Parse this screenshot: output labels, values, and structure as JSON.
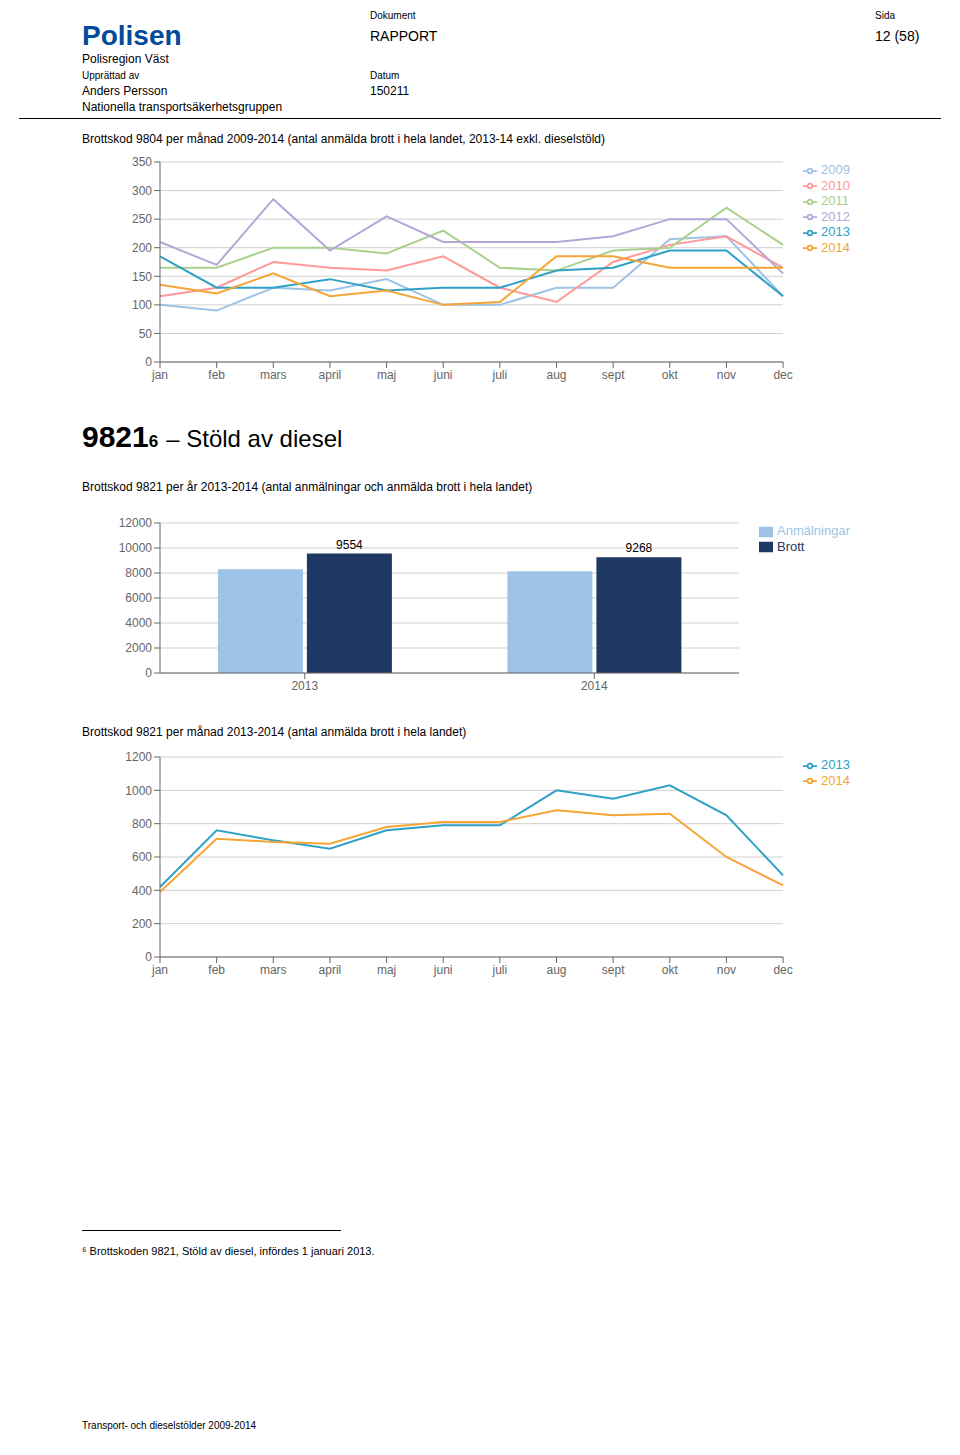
{
  "chart_data": [
    {
      "type": "line",
      "title": "Brottskod 9804 per månad 2009-2014 (antal anmälda brott i hela landet, 2013-14 exkl. dieselstöld)",
      "annotations": [
        "Polisen",
        "Polisregion Väst",
        "Dokument",
        "RAPPORT",
        "Sida",
        "12 (58)",
        "Upprättad av",
        "Anders Persson",
        "Datum",
        "150211",
        "Nationella transportsäkerhetsgruppen"
      ],
      "categories": [
        "jan",
        "feb",
        "mars",
        "april",
        "maj",
        "juni",
        "juli",
        "aug",
        "sept",
        "okt",
        "nov",
        "dec"
      ],
      "series": [
        {
          "name": "2009",
          "color": "#9DC3E6",
          "values": [
            100,
            90,
            130,
            125,
            145,
            100,
            100,
            130,
            130,
            215,
            220,
            115
          ]
        },
        {
          "name": "2010",
          "color": "#FF9999",
          "values": [
            115,
            130,
            175,
            165,
            160,
            185,
            130,
            105,
            175,
            205,
            220,
            165
          ]
        },
        {
          "name": "2011",
          "color": "#A9D18E",
          "values": [
            165,
            165,
            200,
            200,
            190,
            230,
            165,
            160,
            195,
            200,
            270,
            205
          ]
        },
        {
          "name": "2012",
          "color": "#B4A7D6",
          "values": [
            210,
            170,
            285,
            195,
            255,
            210,
            210,
            210,
            220,
            250,
            250,
            155
          ]
        },
        {
          "name": "2013",
          "color": "#2FA1C6",
          "values": [
            185,
            130,
            130,
            145,
            125,
            130,
            130,
            160,
            165,
            195,
            195,
            115
          ]
        },
        {
          "name": "2014",
          "color": "#F4A535",
          "values": [
            135,
            120,
            155,
            115,
            125,
            100,
            105,
            185,
            185,
            165,
            165,
            165
          ]
        }
      ],
      "ylim": [
        0,
        350
      ],
      "yticks": [
        0,
        50,
        100,
        150,
        200,
        250,
        300,
        350
      ],
      "grid": true,
      "legend": "right"
    },
    {
      "type": "bar",
      "title": "Brottskod 9821 per år 2013-2014 (antal anmälningar och anmälda brott i hela landet)",
      "annotations": [
        "9821",
        "6",
        "– Stöld av diesel"
      ],
      "categories": [
        "2013",
        "2014"
      ],
      "series": [
        {
          "name": "Anmälningar",
          "color": "#9DC3E6",
          "values": [
            8300,
            8150
          ]
        },
        {
          "name": "Brott",
          "color": "#1F3864",
          "values": [
            9554,
            9268
          ],
          "data_labels": true
        }
      ],
      "ylim": [
        0,
        12000
      ],
      "yticks": [
        0,
        2000,
        4000,
        6000,
        8000,
        10000,
        12000
      ],
      "grid": true,
      "legend": "right"
    },
    {
      "type": "line",
      "title": "Brottskod 9821 per månad 2013-2014 (antal anmälda brott i hela landet)",
      "annotations": [
        "⁶  Brottskoden 9821, Stöld av diesel, infördes 1 januari 2013.",
        "Transport- och dieselstölder 2009-2014"
      ],
      "categories": [
        "jan",
        "feb",
        "mars",
        "april",
        "maj",
        "juni",
        "juli",
        "aug",
        "sept",
        "okt",
        "nov",
        "dec"
      ],
      "series": [
        {
          "name": "2013",
          "color": "#2FA1C6",
          "values": [
            420,
            760,
            700,
            650,
            760,
            790,
            790,
            1000,
            950,
            1030,
            850,
            490
          ]
        },
        {
          "name": "2014",
          "color": "#F4A535",
          "values": [
            390,
            710,
            690,
            680,
            780,
            810,
            810,
            880,
            850,
            860,
            600,
            430
          ]
        }
      ],
      "ylim": [
        0,
        1200
      ],
      "yticks": [
        0,
        200,
        400,
        600,
        800,
        1000,
        1200
      ],
      "grid": true,
      "legend": "right"
    }
  ]
}
